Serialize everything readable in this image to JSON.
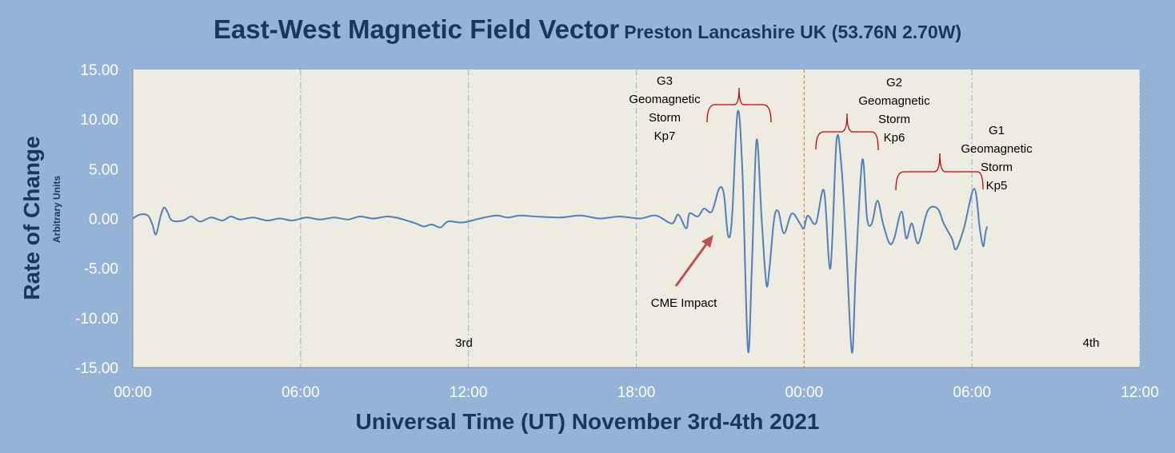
{
  "chart_data": {
    "type": "line",
    "title": "East-West Magnetic Field Vector",
    "subtitle": "Preston Lancashire UK (53.76N 2.70W)",
    "xlabel": "Universal Time (UT) November 3rd-4th 2021",
    "ylabel": "Rate of Change",
    "ylabel_sub": "Arbitrary Units",
    "xlim": [
      0,
      36
    ],
    "ylim": [
      -15,
      15
    ],
    "x_unit": "hours since 00:00 Nov 3rd",
    "xticks": [
      0,
      6,
      12,
      18,
      24,
      30,
      36
    ],
    "xtick_labels": [
      "00:00",
      "06:00",
      "12:00",
      "18:00",
      "00:00",
      "06:00",
      "12:00"
    ],
    "yticks": [
      15,
      10,
      5,
      0,
      -5,
      -10,
      -15
    ],
    "ytick_labels": [
      "15.00",
      "10.00",
      "5.00",
      "0.00",
      "-5.00",
      "-10.00",
      "-15.00"
    ],
    "day_labels": [
      "3rd",
      "4th"
    ],
    "midnight_marker": 24,
    "line_color": "#4f81bd",
    "series": [
      {
        "name": "East-West rate of change",
        "x": [
          0,
          0.26,
          0.54,
          0.7,
          0.83,
          1.0,
          1.12,
          1.25,
          1.4,
          1.8,
          2.1,
          2.4,
          2.8,
          3.2,
          3.5,
          3.83,
          4.3,
          4.8,
          5.26,
          5.7,
          6.2,
          6.69,
          7.2,
          7.7,
          8.12,
          8.6,
          9.1,
          9.55,
          10.12,
          10.4,
          10.69,
          11.0,
          11.27,
          11.8,
          12.41,
          13.0,
          13.4,
          13.84,
          14.4,
          15.27,
          16.0,
          16.7,
          17.4,
          18.13,
          18.7,
          19.27,
          19.5,
          19.79,
          19.9,
          20.2,
          20.42,
          20.7,
          20.96,
          21.13,
          21.28,
          21.42,
          21.62,
          21.79,
          21.99,
          22.13,
          22.3,
          22.48,
          22.65,
          22.76,
          22.93,
          23.08,
          23.28,
          23.56,
          23.85,
          23.99,
          24.13,
          24.42,
          24.71,
          24.94,
          25.16,
          25.34,
          25.51,
          25.71,
          25.85,
          26.08,
          26.25,
          26.42,
          26.62,
          26.82,
          27.05,
          27.22,
          27.48,
          27.65,
          27.85,
          28.08,
          28.42,
          28.77,
          28.99,
          29.28,
          29.43,
          29.71,
          30.08,
          30.28,
          30.4,
          30.48,
          30.54
        ],
        "y": [
          0,
          0.4,
          0.3,
          -0.6,
          -1.6,
          0.3,
          1.1,
          0.6,
          -0.2,
          -0.2,
          0.2,
          -0.3,
          0.1,
          -0.2,
          0.2,
          -0.1,
          0.1,
          -0.2,
          0,
          -0.2,
          0.1,
          -0.1,
          0.1,
          -0.1,
          0.2,
          0,
          0.2,
          0,
          -0.5,
          -0.8,
          -0.6,
          -0.9,
          -0.3,
          -0.4,
          0,
          0.3,
          0.1,
          0.3,
          0.2,
          0.1,
          0.3,
          0,
          0.2,
          0,
          0.3,
          -0.5,
          0.4,
          -1.0,
          0.5,
          0.2,
          1.0,
          0.7,
          3.0,
          2.5,
          -1.7,
          0,
          10.7,
          5.0,
          -13.2,
          -5.0,
          7.9,
          0,
          -6.6,
          -5.0,
          0,
          0.7,
          -1.5,
          0.5,
          -0.5,
          -1.0,
          0.3,
          -0.5,
          2.8,
          -5.0,
          7.9,
          5.0,
          -3.0,
          -13.5,
          -5.0,
          5.9,
          0,
          -0.5,
          1.8,
          -0.5,
          -2.5,
          -2.0,
          0.7,
          -2.0,
          -0.5,
          -2.5,
          0.8,
          1.0,
          -0.5,
          -2.0,
          -3.1,
          -1.0,
          3.0,
          -1.0,
          -2.8,
          -1.5,
          -0.8
        ]
      }
    ],
    "annotations": {
      "g3": [
        "G3",
        "Geomagnetic",
        "Storm",
        "Kp7"
      ],
      "g2": [
        "G2",
        "Geomagnetic",
        "Storm",
        "Kp6"
      ],
      "g1": [
        "G1",
        "Geomagnetic",
        "Storm",
        "Kp5"
      ],
      "cme": "CME Impact"
    },
    "grid": "vertical dash-dot every 6 hours",
    "legend": "none"
  }
}
